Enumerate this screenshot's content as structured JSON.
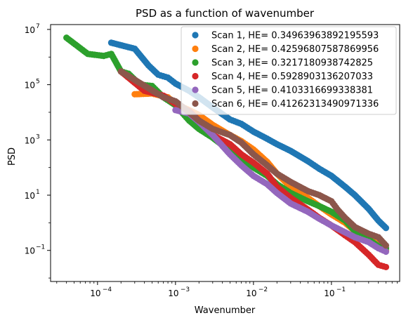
{
  "chart_data": {
    "type": "scatter",
    "title": "PSD as a function of wavenumber",
    "xlabel": "Wavenumber",
    "ylabel": "PSD",
    "xscale": "log",
    "yscale": "log",
    "xlim": [
      2.5e-05,
      0.75
    ],
    "ylim": [
      0.0075,
      15000000.0
    ],
    "xticks": [
      {
        "value": 0.0001,
        "base": "10",
        "exp": "−4"
      },
      {
        "value": 0.001,
        "base": "10",
        "exp": "−3"
      },
      {
        "value": 0.01,
        "base": "10",
        "exp": "−2"
      },
      {
        "value": 0.1,
        "base": "10",
        "exp": "−1"
      }
    ],
    "yticks": [
      {
        "value": 0.1,
        "base": "10",
        "exp": "−1"
      },
      {
        "value": 10,
        "base": "10",
        "exp": "1"
      },
      {
        "value": 1000,
        "base": "10",
        "exp": "3"
      },
      {
        "value": 100000,
        "base": "10",
        "exp": "5"
      },
      {
        "value": 10000000,
        "base": "10",
        "exp": "7"
      }
    ],
    "grid": false,
    "legend_position": "top-right",
    "series": [
      {
        "name": "Scan 1, HE= 0.34963963892195593",
        "color": "#1f77b4",
        "points": [
          [
            0.00015,
            3300000.0
          ],
          [
            0.0003,
            2000000.0
          ],
          [
            0.00045,
            500000.0
          ],
          [
            0.0006,
            230000.0
          ],
          [
            0.0008,
            180000.0
          ],
          [
            0.001,
            110000.0
          ],
          [
            0.0015,
            60000.0
          ],
          [
            0.002,
            35000.0
          ],
          [
            0.003,
            15000.0
          ],
          [
            0.005,
            5500.0
          ],
          [
            0.007,
            3800.0
          ],
          [
            0.01,
            2000.0
          ],
          [
            0.015,
            1100.0
          ],
          [
            0.02,
            700
          ],
          [
            0.03,
            400
          ],
          [
            0.05,
            170
          ],
          [
            0.07,
            90
          ],
          [
            0.1,
            50
          ],
          [
            0.15,
            20
          ],
          [
            0.2,
            10
          ],
          [
            0.3,
            3.2
          ],
          [
            0.4,
            1.2
          ],
          [
            0.5,
            0.65
          ]
        ]
      },
      {
        "name": "Scan 2, HE= 0.42596807587869956",
        "color": "#ff7f0e",
        "points": [
          [
            0.0003,
            45000.0
          ],
          [
            0.0005,
            48000.0
          ],
          [
            0.0008,
            35000.0
          ],
          [
            0.001,
            20000.0
          ],
          [
            0.0015,
            12000.0
          ],
          [
            0.002,
            8000.0
          ],
          [
            0.003,
            3500.0
          ],
          [
            0.005,
            1500.0
          ],
          [
            0.007,
            900
          ],
          [
            0.01,
            450
          ],
          [
            0.015,
            160
          ],
          [
            0.02,
            60
          ],
          [
            0.03,
            20
          ],
          [
            0.05,
            8
          ],
          [
            0.07,
            4
          ],
          [
            0.1,
            2
          ],
          [
            0.15,
            1
          ],
          [
            0.2,
            0.5
          ],
          [
            0.3,
            0.3
          ],
          [
            0.4,
            0.15
          ],
          [
            0.5,
            0.1
          ]
        ]
      },
      {
        "name": "Scan 3, HE= 0.3217180938742825",
        "color": "#2ca02c",
        "points": [
          [
            4e-05,
            5000000.0
          ],
          [
            7.5e-05,
            1300000.0
          ],
          [
            0.00012,
            1100000.0
          ],
          [
            0.00015,
            1300000.0
          ],
          [
            0.0002,
            300000.0
          ],
          [
            0.00025,
            250000.0
          ],
          [
            0.00035,
            100000.0
          ],
          [
            0.0005,
            90000.0
          ],
          [
            0.0007,
            35000.0
          ],
          [
            0.001,
            18000.0
          ],
          [
            0.0015,
            5000.0
          ],
          [
            0.002,
            2500.0
          ],
          [
            0.003,
            1200.0
          ],
          [
            0.005,
            400
          ],
          [
            0.007,
            220
          ],
          [
            0.01,
            100
          ],
          [
            0.015,
            50
          ],
          [
            0.02,
            25
          ],
          [
            0.03,
            12
          ],
          [
            0.05,
            6
          ],
          [
            0.07,
            4
          ],
          [
            0.1,
            2.5
          ],
          [
            0.15,
            1.2
          ],
          [
            0.2,
            0.5
          ],
          [
            0.3,
            0.25
          ],
          [
            0.4,
            0.14
          ],
          [
            0.5,
            0.12
          ]
        ]
      },
      {
        "name": "Scan 4, HE= 0.5928903136207033",
        "color": "#d62728",
        "points": [
          [
            0.0002,
            300000.0
          ],
          [
            0.0004,
            60000.0
          ],
          [
            0.0007,
            40000.0
          ],
          [
            0.001,
            20000.0
          ],
          [
            0.0015,
            11000.0
          ],
          [
            0.002,
            5000.0
          ],
          [
            0.003,
            1500.0
          ],
          [
            0.005,
            700
          ],
          [
            0.007,
            300
          ],
          [
            0.01,
            150
          ],
          [
            0.015,
            60
          ],
          [
            0.02,
            20
          ],
          [
            0.03,
            8
          ],
          [
            0.05,
            3
          ],
          [
            0.07,
            1.5
          ],
          [
            0.1,
            0.8
          ],
          [
            0.15,
            0.35
          ],
          [
            0.2,
            0.2
          ],
          [
            0.3,
            0.07
          ],
          [
            0.4,
            0.03
          ],
          [
            0.5,
            0.025
          ]
        ]
      },
      {
        "name": "Scan 5, HE= 0.4103316699338381",
        "color": "#9467bd",
        "points": [
          [
            0.001,
            12000.0
          ],
          [
            0.0015,
            9000.0
          ],
          [
            0.002,
            4500.0
          ],
          [
            0.003,
            1500.0
          ],
          [
            0.005,
            300
          ],
          [
            0.007,
            120
          ],
          [
            0.01,
            50
          ],
          [
            0.015,
            25
          ],
          [
            0.02,
            12
          ],
          [
            0.03,
            5
          ],
          [
            0.05,
            2.5
          ],
          [
            0.07,
            1.4
          ],
          [
            0.1,
            0.8
          ],
          [
            0.15,
            0.45
          ],
          [
            0.2,
            0.3
          ],
          [
            0.3,
            0.2
          ],
          [
            0.4,
            0.12
          ],
          [
            0.5,
            0.09
          ]
        ]
      },
      {
        "name": "Scan 6, HE= 0.41262313490971336",
        "color": "#8c564b",
        "points": [
          [
            0.0002,
            300000.0
          ],
          [
            0.0007,
            35000.0
          ],
          [
            0.001,
            25000.0
          ],
          [
            0.0015,
            10000.0
          ],
          [
            0.002,
            5000.0
          ],
          [
            0.003,
            2500.0
          ],
          [
            0.005,
            1500.0
          ],
          [
            0.007,
            800
          ],
          [
            0.01,
            300
          ],
          [
            0.015,
            120
          ],
          [
            0.02,
            60
          ],
          [
            0.03,
            30
          ],
          [
            0.05,
            14
          ],
          [
            0.07,
            10
          ],
          [
            0.1,
            6
          ],
          [
            0.12,
            3
          ],
          [
            0.15,
            1.5
          ],
          [
            0.2,
            0.7
          ],
          [
            0.3,
            0.4
          ],
          [
            0.4,
            0.3
          ],
          [
            0.5,
            0.15
          ]
        ]
      }
    ]
  }
}
